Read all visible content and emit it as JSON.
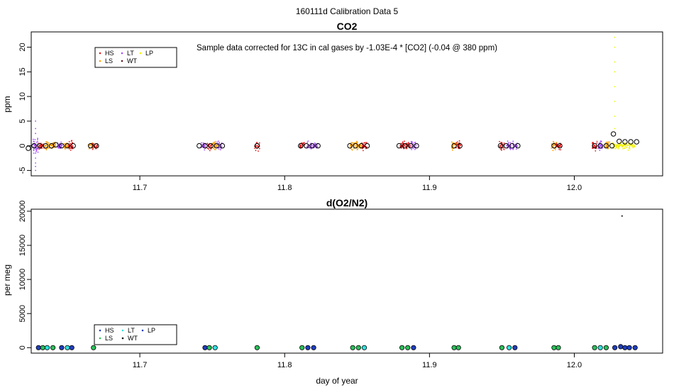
{
  "page_title": "160111d   Calibration Data 5",
  "legend_colors": {
    "HS": "#e31a1c",
    "LS": "#ff9f00",
    "LT": "#a64dff",
    "WT": "#6b1a1a",
    "LP": "#f2f200"
  },
  "o2_legend_colors": {
    "HS": "#1f3fbf",
    "LS": "#2bbf5a",
    "LT": "#30e0e0",
    "WT": "#111111",
    "LP": "#1f3fbf"
  },
  "chart_data": [
    {
      "type": "scatter",
      "title": "CO2",
      "annotation": "Sample data corrected for 13C in cal gases by -1.03E-4 * [CO2] (-0.04 @ 380 ppm)",
      "xlabel": "",
      "ylabel": "ppm",
      "xlim": [
        11.625,
        12.061
      ],
      "ylim": [
        -6.1,
        23.1
      ],
      "xticks": [
        11.7,
        11.8,
        11.9,
        12.0
      ],
      "xtick_labels": [
        "11.7",
        "11.8",
        "11.9",
        "12.0"
      ],
      "yticks": [
        -5,
        0,
        5,
        10,
        15,
        20
      ],
      "ytick_labels": [
        "-5",
        "0",
        "5",
        "10",
        "15",
        "20"
      ],
      "legend": {
        "position": "top-left",
        "entries": [
          {
            "label": "HS",
            "color_key": "HS"
          },
          {
            "label": "LS",
            "color_key": "LS"
          },
          {
            "label": "LT",
            "color_key": "LT"
          },
          {
            "label": "WT",
            "color_key": "WT"
          },
          {
            "label": "LP",
            "color_key": "LP"
          }
        ]
      },
      "groups": [
        {
          "day": 11.631,
          "clusters": [
            {
              "x": 11.628,
              "color_key": "LT",
              "spread": 2.5,
              "n": 40
            },
            {
              "x": 11.632,
              "color_key": "HS",
              "spread": 1.3,
              "n": 30
            },
            {
              "x": 11.636,
              "color_key": "LS",
              "spread": 1.3,
              "n": 30
            },
            {
              "x": 11.64,
              "color_key": "LS",
              "spread": 1.3,
              "n": 30
            }
          ],
          "means": [
            -0.5,
            0.0,
            0.0,
            0.0,
            0.0
          ]
        },
        {
          "day": 11.648,
          "clusters": [
            {
              "x": 11.645,
              "color_key": "LT",
              "spread": 1.3,
              "n": 30
            },
            {
              "x": 11.649,
              "color_key": "LS",
              "spread": 1.3,
              "n": 30
            },
            {
              "x": 11.652,
              "color_key": "HS",
              "spread": 1.3,
              "n": 30
            }
          ],
          "means": [
            0.2,
            0.0,
            0.0,
            0.0
          ]
        },
        {
          "day": 11.668,
          "clusters": [
            {
              "x": 11.666,
              "color_key": "LS",
              "spread": 1.2,
              "n": 24
            },
            {
              "x": 11.669,
              "color_key": "HS",
              "spread": 1.2,
              "n": 24
            }
          ],
          "means": [
            0.0,
            0.0
          ]
        },
        {
          "day": 11.749,
          "clusters": [
            {
              "x": 11.744,
              "color_key": "LT",
              "spread": 1.3,
              "n": 30
            },
            {
              "x": 11.748,
              "color_key": "HS",
              "spread": 1.3,
              "n": 30
            },
            {
              "x": 11.752,
              "color_key": "LS",
              "spread": 1.3,
              "n": 30
            },
            {
              "x": 11.755,
              "color_key": "LT",
              "spread": 1.3,
              "n": 30
            }
          ],
          "means": [
            0.0,
            0.0,
            0.0,
            0.0,
            0.0
          ]
        },
        {
          "day": 11.781,
          "clusters": [
            {
              "x": 11.781,
              "color_key": "HS",
              "spread": 1.4,
              "n": 24
            }
          ],
          "means": [
            0.0
          ]
        },
        {
          "day": 11.817,
          "clusters": [
            {
              "x": 11.812,
              "color_key": "HS",
              "spread": 1.3,
              "n": 30
            },
            {
              "x": 11.817,
              "color_key": "LT",
              "spread": 1.3,
              "n": 30
            },
            {
              "x": 11.821,
              "color_key": "LT",
              "spread": 1.3,
              "n": 30
            }
          ],
          "means": [
            0.0,
            0.0,
            0.0,
            0.0
          ]
        },
        {
          "day": 11.851,
          "clusters": [
            {
              "x": 11.847,
              "color_key": "LS",
              "spread": 1.3,
              "n": 30
            },
            {
              "x": 11.851,
              "color_key": "LS",
              "spread": 1.3,
              "n": 30
            },
            {
              "x": 11.855,
              "color_key": "HS",
              "spread": 1.3,
              "n": 30
            }
          ],
          "means": [
            0.0,
            0.0,
            0.0,
            0.0
          ]
        },
        {
          "day": 11.885,
          "clusters": [
            {
              "x": 11.881,
              "color_key": "HS",
              "spread": 1.5,
              "n": 30
            },
            {
              "x": 11.885,
              "color_key": "HS",
              "spread": 1.3,
              "n": 30
            },
            {
              "x": 11.889,
              "color_key": "LT",
              "spread": 1.3,
              "n": 30
            }
          ],
          "means": [
            0.0,
            0.0,
            0.0,
            0.0
          ]
        },
        {
          "day": 11.919,
          "clusters": [
            {
              "x": 11.917,
              "color_key": "LS",
              "spread": 1.3,
              "n": 30
            },
            {
              "x": 11.92,
              "color_key": "HS",
              "spread": 1.3,
              "n": 30
            }
          ],
          "means": [
            0.0,
            0.0
          ]
        },
        {
          "day": 11.955,
          "clusters": [
            {
              "x": 11.95,
              "color_key": "HS",
              "spread": 1.3,
              "n": 30
            },
            {
              "x": 11.955,
              "color_key": "LT",
              "spread": 1.3,
              "n": 30
            },
            {
              "x": 11.959,
              "color_key": "LT",
              "spread": 1.3,
              "n": 30
            }
          ],
          "means": [
            0.0,
            0.0,
            0.0,
            0.0
          ]
        },
        {
          "day": 11.988,
          "clusters": [
            {
              "x": 11.986,
              "color_key": "LS",
              "spread": 1.3,
              "n": 30
            },
            {
              "x": 11.989,
              "color_key": "HS",
              "spread": 1.3,
              "n": 30
            }
          ],
          "means": [
            0.0,
            0.0
          ]
        },
        {
          "day": 12.02,
          "clusters": [
            {
              "x": 12.014,
              "color_key": "HS",
              "spread": 1.3,
              "n": 30
            },
            {
              "x": 12.018,
              "color_key": "LT",
              "spread": 1.3,
              "n": 30
            },
            {
              "x": 12.023,
              "color_key": "LS",
              "spread": 1.3,
              "n": 30
            }
          ],
          "means": [
            0.0,
            0.0,
            0.0,
            0.0
          ]
        },
        {
          "day": 12.035,
          "clusters": [
            {
              "x": 12.034,
              "color_key": "LP",
              "spread": 1.0,
              "n": 90,
              "width": 0.016
            }
          ],
          "means": [
            2.4,
            0.9,
            0.8,
            0.8,
            0.8
          ]
        }
      ],
      "lp_spike": {
        "x": 12.028,
        "values": [
          22.0,
          20.0,
          17.0,
          15.0,
          12.0,
          9.0,
          6.0,
          3.5
        ]
      }
    },
    {
      "type": "scatter",
      "title": "d(O2/N2)",
      "xlabel": "day of year",
      "ylabel": "per meg",
      "xlim": [
        11.625,
        12.061
      ],
      "ylim": [
        -800,
        20300
      ],
      "xticks": [
        11.7,
        11.8,
        11.9,
        12.0
      ],
      "xtick_labels": [
        "11.7",
        "11.8",
        "11.9",
        "12.0"
      ],
      "yticks": [
        0,
        5000,
        10000,
        15000,
        20000
      ],
      "ytick_labels": [
        "0",
        "5000",
        "10000",
        "15000",
        "20000"
      ],
      "legend": {
        "position": "bottom-left",
        "entries": [
          {
            "label": "HS",
            "color_key": "HS"
          },
          {
            "label": "LS",
            "color_key": "LS"
          },
          {
            "label": "LT",
            "color_key": "LT"
          },
          {
            "label": "WT",
            "color_key": "WT"
          },
          {
            "label": "LP",
            "color_key": "LP"
          }
        ]
      },
      "points": [
        {
          "x": 11.63,
          "y": 0,
          "color_key": "HS"
        },
        {
          "x": 11.633,
          "y": 0,
          "color_key": "LS"
        },
        {
          "x": 11.636,
          "y": 0,
          "color_key": "LT"
        },
        {
          "x": 11.64,
          "y": 0,
          "color_key": "LS"
        },
        {
          "x": 11.646,
          "y": 0,
          "color_key": "HS"
        },
        {
          "x": 11.65,
          "y": 0,
          "color_key": "LT"
        },
        {
          "x": 11.653,
          "y": 0,
          "color_key": "HS"
        },
        {
          "x": 11.668,
          "y": 0,
          "color_key": "LS"
        },
        {
          "x": 11.745,
          "y": 0,
          "color_key": "HS"
        },
        {
          "x": 11.748,
          "y": 0,
          "color_key": "LS"
        },
        {
          "x": 11.752,
          "y": 0,
          "color_key": "LT"
        },
        {
          "x": 11.781,
          "y": 0,
          "color_key": "LS"
        },
        {
          "x": 11.812,
          "y": 0,
          "color_key": "LS"
        },
        {
          "x": 11.816,
          "y": 0,
          "color_key": "HS"
        },
        {
          "x": 11.82,
          "y": 0,
          "color_key": "HS"
        },
        {
          "x": 11.847,
          "y": 0,
          "color_key": "LS"
        },
        {
          "x": 11.851,
          "y": 0,
          "color_key": "LS"
        },
        {
          "x": 11.855,
          "y": 0,
          "color_key": "LT"
        },
        {
          "x": 11.881,
          "y": 0,
          "color_key": "LS"
        },
        {
          "x": 11.885,
          "y": 0,
          "color_key": "LS"
        },
        {
          "x": 11.889,
          "y": 0,
          "color_key": "HS"
        },
        {
          "x": 11.917,
          "y": 0,
          "color_key": "LS"
        },
        {
          "x": 11.92,
          "y": 0,
          "color_key": "LS"
        },
        {
          "x": 11.95,
          "y": 0,
          "color_key": "LS"
        },
        {
          "x": 11.955,
          "y": 0,
          "color_key": "LT"
        },
        {
          "x": 11.959,
          "y": 0,
          "color_key": "HS"
        },
        {
          "x": 11.986,
          "y": 0,
          "color_key": "LS"
        },
        {
          "x": 11.989,
          "y": 0,
          "color_key": "LS"
        },
        {
          "x": 12.014,
          "y": 0,
          "color_key": "LS"
        },
        {
          "x": 12.018,
          "y": 0,
          "color_key": "LT"
        },
        {
          "x": 12.022,
          "y": 0,
          "color_key": "LS"
        },
        {
          "x": 12.028,
          "y": 0,
          "color_key": "HS"
        },
        {
          "x": 12.032,
          "y": 150,
          "color_key": "HS"
        },
        {
          "x": 12.035,
          "y": 0,
          "color_key": "HS"
        },
        {
          "x": 12.038,
          "y": 0,
          "color_key": "HS"
        },
        {
          "x": 12.042,
          "y": 0,
          "color_key": "HS"
        }
      ],
      "outlier": {
        "x": 12.033,
        "y": 19300
      }
    }
  ]
}
